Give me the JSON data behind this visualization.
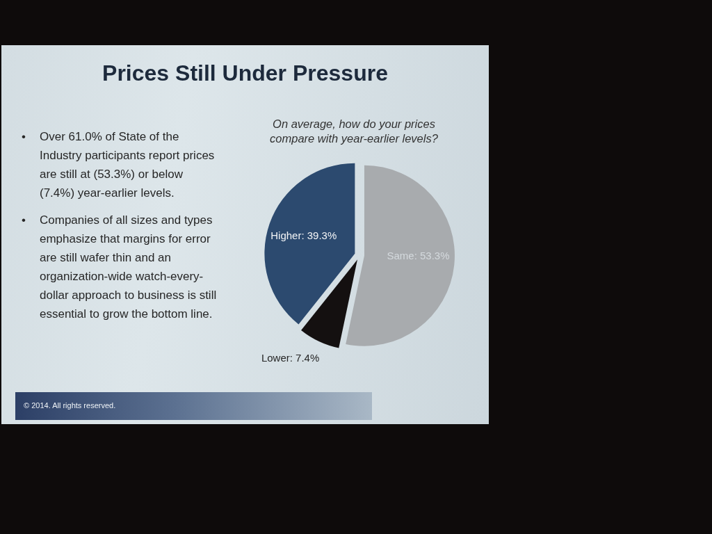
{
  "chart_data": {
    "type": "pie",
    "title": "Prices Still Under Pressure",
    "subtitle": "On average, how do your prices compare with year-earlier levels?",
    "categories": [
      "Same",
      "Lower",
      "Higher"
    ],
    "values": [
      53.3,
      7.4,
      39.3
    ],
    "colors": [
      "#a8abae",
      "#141010",
      "#2c4a6f"
    ],
    "value_labels": [
      "53.3%",
      "7.4%",
      "39.3%"
    ],
    "annotations": [
      "• Over 61.0% of State of the Industry participants report prices are still at (53.3%) or below (7.4%) year-earlier levels.",
      "• Companies of all sizes and types emphasize that margins for error are still wafer thin and an organization-wide watch-every-dollar approach to business is still essential to grow the bottom line.",
      "© 2014. All rights reserved."
    ]
  }
}
